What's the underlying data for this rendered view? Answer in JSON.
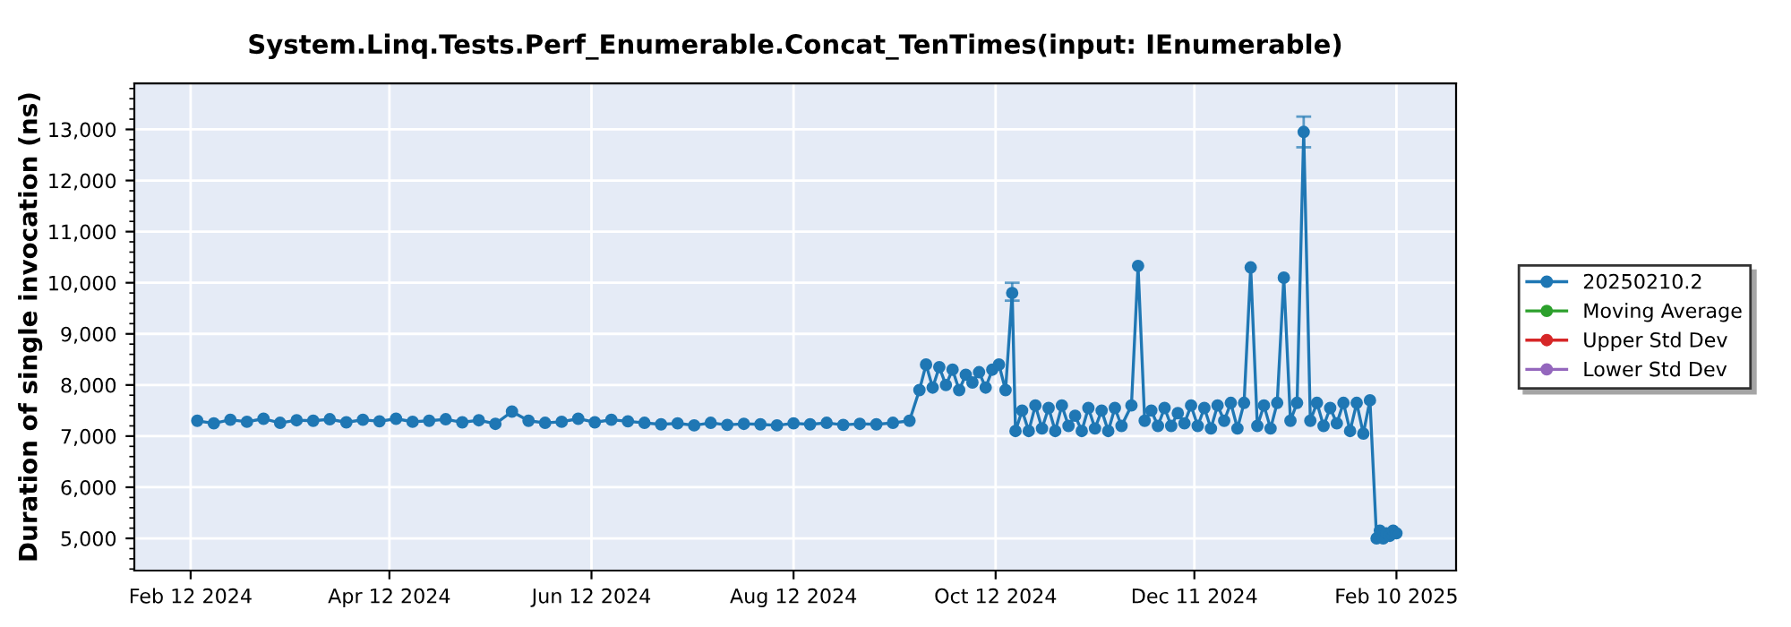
{
  "chart_data": {
    "type": "line",
    "title": "System.Linq.Tests.Perf_Enumerable.Concat_TenTimes(input: IEnumerable)",
    "ylabel": "Duration of single invocation (ns)",
    "marker": "circle",
    "line_style": "solid",
    "grid": true,
    "legend": "right",
    "xlim": [
      "2024-01-26",
      "2025-02-28"
    ],
    "xticks": [
      {
        "value": "2024-02-12",
        "label": "Feb 12 2024"
      },
      {
        "value": "2024-04-12",
        "label": "Apr 12 2024"
      },
      {
        "value": "2024-06-12",
        "label": "Jun 12 2024"
      },
      {
        "value": "2024-08-12",
        "label": "Aug 12 2024"
      },
      {
        "value": "2024-10-12",
        "label": "Oct 12 2024"
      },
      {
        "value": "2024-12-11",
        "label": "Dec 11 2024"
      },
      {
        "value": "2025-02-10",
        "label": "Feb 10 2025"
      }
    ],
    "ylim": [
      4370,
      13900
    ],
    "yticks": [
      {
        "value": 5000,
        "label": "5,000"
      },
      {
        "value": 6000,
        "label": "6,000"
      },
      {
        "value": 7000,
        "label": "7,000"
      },
      {
        "value": 8000,
        "label": "8,000"
      },
      {
        "value": 9000,
        "label": "9,000"
      },
      {
        "value": 10000,
        "label": "10,000"
      },
      {
        "value": 11000,
        "label": "11,000"
      },
      {
        "value": 12000,
        "label": "12,000"
      },
      {
        "value": 13000,
        "label": "13,000"
      }
    ],
    "series": [
      {
        "name": "20250210.2",
        "color": "#1f77b4",
        "x": [
          "2024-02-14",
          "2024-02-19",
          "2024-02-24",
          "2024-02-29",
          "2024-03-05",
          "2024-03-10",
          "2024-03-15",
          "2024-03-20",
          "2024-03-25",
          "2024-03-30",
          "2024-04-04",
          "2024-04-09",
          "2024-04-14",
          "2024-04-19",
          "2024-04-24",
          "2024-04-29",
          "2024-05-04",
          "2024-05-09",
          "2024-05-14",
          "2024-05-19",
          "2024-05-24",
          "2024-05-29",
          "2024-06-03",
          "2024-06-08",
          "2024-06-13",
          "2024-06-18",
          "2024-06-23",
          "2024-06-28",
          "2024-07-03",
          "2024-07-08",
          "2024-07-13",
          "2024-07-18",
          "2024-07-23",
          "2024-07-28",
          "2024-08-02",
          "2024-08-07",
          "2024-08-12",
          "2024-08-17",
          "2024-08-22",
          "2024-08-27",
          "2024-09-01",
          "2024-09-06",
          "2024-09-11",
          "2024-09-16",
          "2024-09-19",
          "2024-09-21",
          "2024-09-23",
          "2024-09-25",
          "2024-09-27",
          "2024-09-29",
          "2024-10-01",
          "2024-10-03",
          "2024-10-05",
          "2024-10-07",
          "2024-10-09",
          "2024-10-11",
          "2024-10-13",
          "2024-10-15",
          "2024-10-17",
          "2024-10-18",
          "2024-10-20",
          "2024-10-22",
          "2024-10-24",
          "2024-10-26",
          "2024-10-28",
          "2024-10-30",
          "2024-11-01",
          "2024-11-03",
          "2024-11-05",
          "2024-11-07",
          "2024-11-09",
          "2024-11-11",
          "2024-11-13",
          "2024-11-15",
          "2024-11-17",
          "2024-11-19",
          "2024-11-22",
          "2024-11-24",
          "2024-11-26",
          "2024-11-28",
          "2024-11-30",
          "2024-12-02",
          "2024-12-04",
          "2024-12-06",
          "2024-12-08",
          "2024-12-10",
          "2024-12-12",
          "2024-12-14",
          "2024-12-16",
          "2024-12-18",
          "2024-12-20",
          "2024-12-22",
          "2024-12-24",
          "2024-12-26",
          "2024-12-28",
          "2024-12-30",
          "2025-01-01",
          "2025-01-03",
          "2025-01-05",
          "2025-01-07",
          "2025-01-09",
          "2025-01-11",
          "2025-01-13",
          "2025-01-15",
          "2025-01-17",
          "2025-01-19",
          "2025-01-21",
          "2025-01-23",
          "2025-01-25",
          "2025-01-27",
          "2025-01-29",
          "2025-01-31",
          "2025-02-02",
          "2025-02-04",
          "2025-02-05",
          "2025-02-06",
          "2025-02-07",
          "2025-02-08",
          "2025-02-09",
          "2025-02-10"
        ],
        "values": [
          7300,
          7250,
          7320,
          7280,
          7340,
          7260,
          7310,
          7300,
          7330,
          7270,
          7320,
          7290,
          7340,
          7280,
          7300,
          7330,
          7270,
          7310,
          7240,
          7480,
          7300,
          7260,
          7280,
          7340,
          7270,
          7320,
          7290,
          7260,
          7230,
          7250,
          7210,
          7260,
          7220,
          7240,
          7230,
          7210,
          7250,
          7230,
          7260,
          7220,
          7240,
          7230,
          7260,
          7300,
          7900,
          8400,
          7950,
          8350,
          8000,
          8300,
          7900,
          8200,
          8050,
          8250,
          7950,
          8300,
          8400,
          7900,
          9800,
          7100,
          7500,
          7100,
          7600,
          7150,
          7550,
          7100,
          7600,
          7200,
          7400,
          7100,
          7550,
          7150,
          7500,
          7100,
          7550,
          7200,
          7600,
          10330,
          7300,
          7500,
          7200,
          7550,
          7200,
          7450,
          7250,
          7600,
          7200,
          7550,
          7150,
          7600,
          7300,
          7650,
          7150,
          7650,
          10300,
          7200,
          7600,
          7150,
          7650,
          10100,
          7300,
          7650,
          12950,
          7300,
          7650,
          7200,
          7550,
          7250,
          7650,
          7100,
          7650,
          7050,
          7700,
          5000,
          5150,
          5000,
          5100,
          5050,
          5150,
          5100
        ],
        "errors": [
          null,
          null,
          null,
          null,
          null,
          null,
          null,
          null,
          null,
          null,
          null,
          null,
          null,
          null,
          null,
          null,
          null,
          null,
          null,
          null,
          null,
          null,
          null,
          null,
          null,
          null,
          null,
          null,
          null,
          null,
          null,
          null,
          null,
          null,
          null,
          null,
          null,
          null,
          null,
          null,
          null,
          null,
          null,
          null,
          null,
          null,
          null,
          null,
          null,
          null,
          null,
          null,
          null,
          null,
          null,
          null,
          null,
          null,
          [
            9650,
            10000
          ],
          null,
          null,
          null,
          null,
          null,
          null,
          null,
          null,
          null,
          null,
          null,
          null,
          null,
          null,
          null,
          null,
          null,
          null,
          null,
          null,
          null,
          null,
          null,
          null,
          null,
          null,
          null,
          null,
          null,
          null,
          null,
          null,
          null,
          null,
          null,
          null,
          null,
          null,
          null,
          null,
          null,
          null,
          null,
          [
            12650,
            13250
          ],
          null,
          null,
          null,
          null,
          null,
          null,
          null,
          null,
          null,
          null,
          null,
          null,
          null,
          null,
          null,
          null,
          null
        ]
      },
      {
        "name": "Moving Average",
        "color": "#2ca02c"
      },
      {
        "name": "Upper Std Dev",
        "color": "#d62728"
      },
      {
        "name": "Lower Std Dev",
        "color": "#9467bd"
      }
    ]
  }
}
